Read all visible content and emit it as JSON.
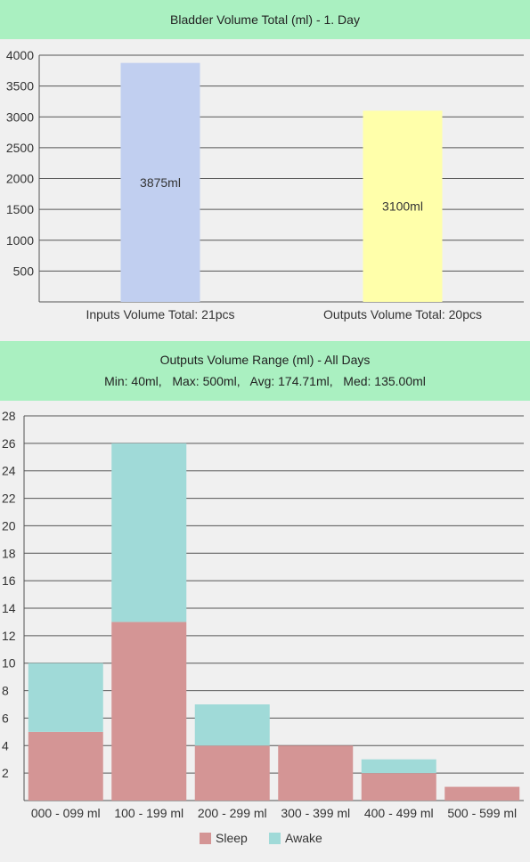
{
  "chart_data": [
    {
      "type": "bar",
      "title": "Bladder Volume Total (ml) - 1. Day",
      "categories": [
        "Inputs Volume Total: 21pcs",
        "Outputs Volume Total: 20pcs"
      ],
      "values": [
        3875,
        3100
      ],
      "data_labels": [
        "3875ml",
        "3100ml"
      ],
      "colors": [
        "#c1cff0",
        "#ffffaa"
      ],
      "ylim": [
        0,
        4000
      ],
      "yticks": [
        500,
        1000,
        1500,
        2000,
        2500,
        3000,
        3500,
        4000
      ],
      "grid": true
    },
    {
      "type": "bar",
      "stacked": true,
      "title": "Outputs Volume Range (ml) - All Days",
      "subtitle": "Min: 40ml,   Max: 500ml,   Avg: 174.71ml,   Med: 135.00ml",
      "categories": [
        "000 - 099 ml",
        "100 - 199 ml",
        "200 - 299 ml",
        "300 - 399 ml",
        "400 - 499 ml",
        "500 - 599 ml"
      ],
      "series": [
        {
          "name": "Sleep",
          "values": [
            5,
            13,
            4,
            4,
            2,
            1
          ],
          "color": "#d49595"
        },
        {
          "name": "Awake",
          "values": [
            5,
            13,
            3,
            0,
            1,
            0
          ],
          "color": "#a0dad8"
        }
      ],
      "ylim": [
        0,
        28
      ],
      "yticks": [
        2,
        4,
        6,
        8,
        10,
        12,
        14,
        16,
        18,
        20,
        22,
        24,
        26,
        28
      ],
      "grid": true,
      "legend_position": "bottom"
    }
  ]
}
